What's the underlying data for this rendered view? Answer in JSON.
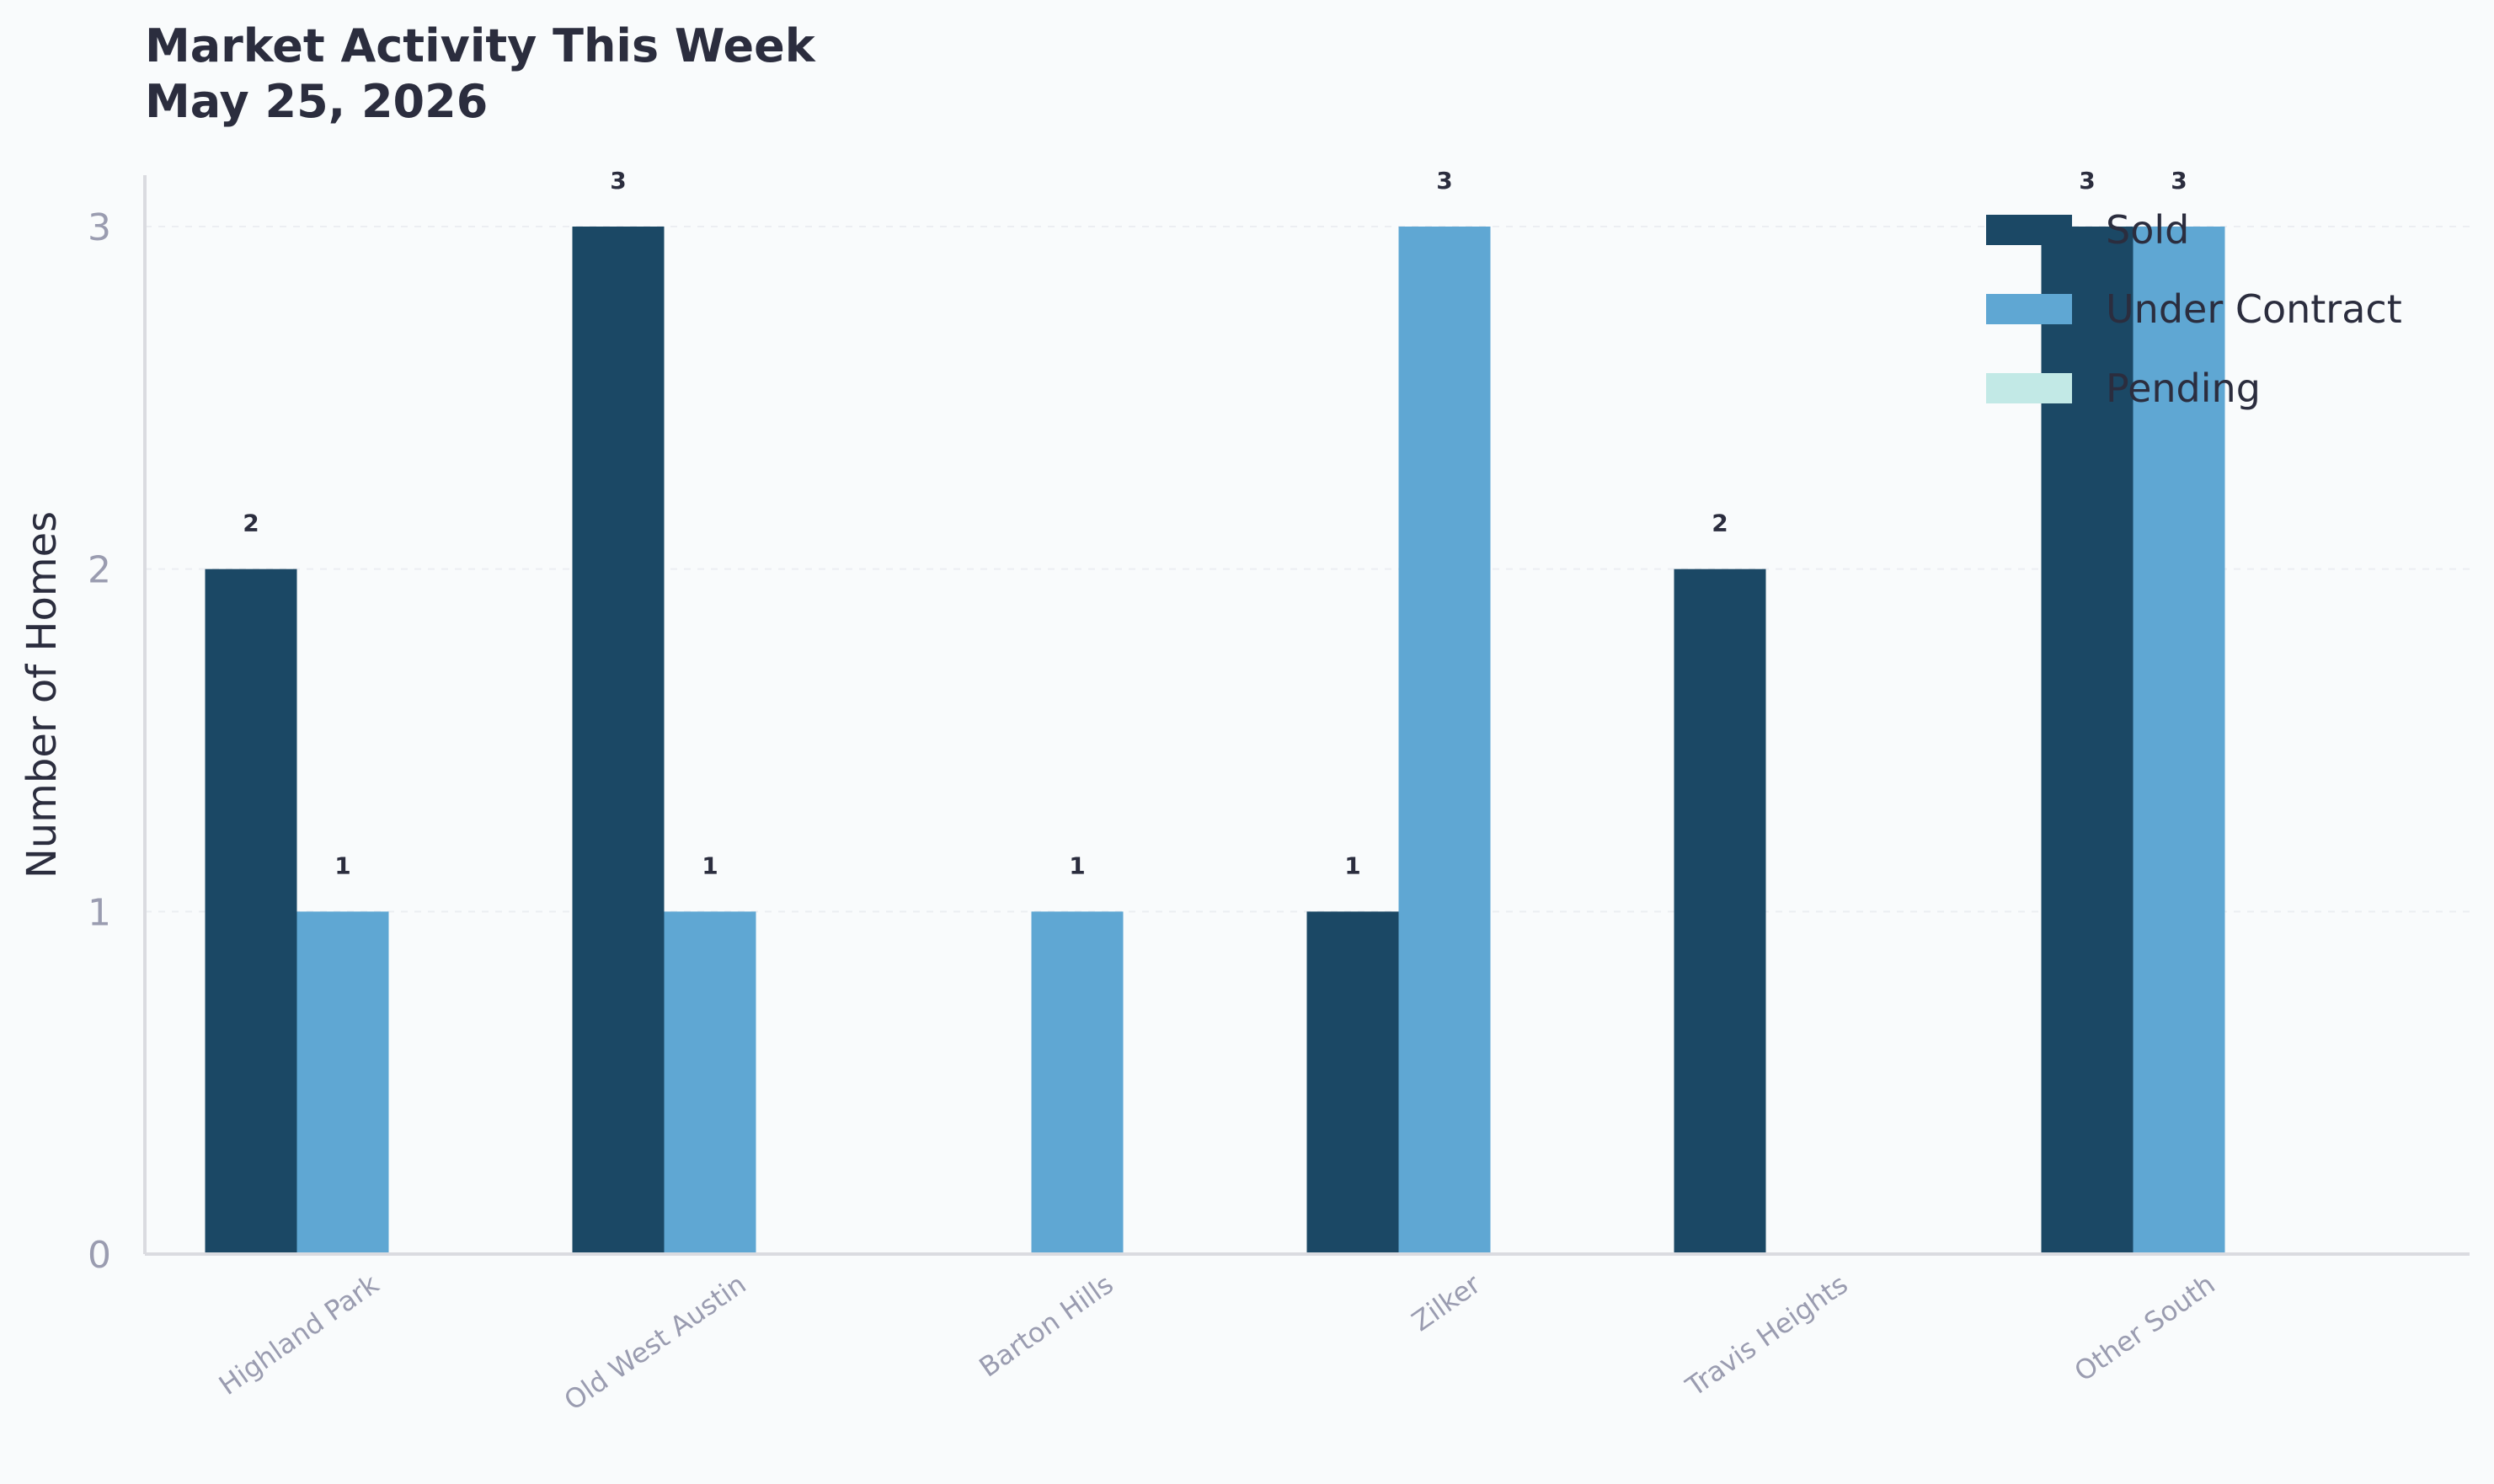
{
  "chart_data": {
    "type": "bar",
    "title": "Market Activity This Week",
    "subtitle": "May 25, 2026",
    "xlabel": "",
    "ylabel": "Number of Homes",
    "ylim": [
      0,
      3.15
    ],
    "yticks": [
      "0",
      "1",
      "2",
      "3"
    ],
    "grid": true,
    "legend_position": "top-right",
    "categories": [
      "Highland Park",
      "Old West Austin",
      "Barton Hills",
      "Zilker",
      "Travis Heights",
      "Other South"
    ],
    "series": [
      {
        "name": "Sold",
        "color": "#1b4865",
        "values": [
          2,
          3,
          0,
          1,
          2,
          3
        ]
      },
      {
        "name": "Under Contract",
        "color": "#5fa7d3",
        "values": [
          1,
          1,
          1,
          3,
          0,
          3
        ]
      },
      {
        "name": "Pending",
        "color": "#c2e9e6",
        "values": [
          0,
          0,
          0,
          0,
          0,
          0
        ]
      }
    ],
    "colors": {
      "title": "#2b2d3e",
      "tick": "#9a9cb0",
      "axis": "#dadbe0",
      "grid": "#eceef2",
      "label": "#2b2d3e",
      "background": "#f9fbfc"
    }
  }
}
